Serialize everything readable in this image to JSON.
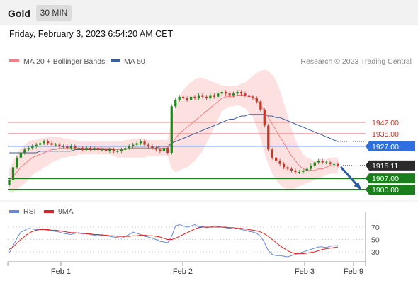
{
  "header": {
    "title": "Gold",
    "timeframe": "30 MIN"
  },
  "datetime": "Friday, February 3, 2023 6:54:20 AM CET",
  "legend": {
    "ma20": "MA 20 + Bollinger Bands",
    "ma50": "MA 50",
    "credit": "Research © 2023 Trading Central",
    "rsi": "RSI",
    "rsi_ma": "9MA"
  },
  "colors": {
    "ma20": "#f08080",
    "ma50": "#3a5fa0",
    "bollinger_fill": "#fde0e0",
    "resistance": "#f08080",
    "pivot": "#4a7cd0",
    "support": "#1a7f1a",
    "candle_up": "#1e8a1e",
    "candle_down": "#c0392b",
    "rsi": "#6688dd",
    "rsi_ma": "#dd2222",
    "arrow": "#2a5aa0"
  },
  "chart_data": [
    {
      "type": "candlestick",
      "instrument": "Gold",
      "timeframe": "30 MIN",
      "x_ticks": [
        "Feb 1",
        "Feb 2",
        "Feb 3",
        "Feb 9"
      ],
      "levels": [
        {
          "value": 1942.0,
          "label": "1942.00",
          "kind": "resistance"
        },
        {
          "value": 1935.0,
          "label": "1935.00",
          "kind": "resistance"
        },
        {
          "value": 1927.0,
          "label": "1927.00",
          "kind": "pivot"
        },
        {
          "value": 1915.11,
          "label": "1915.11",
          "kind": "last_price"
        },
        {
          "value": 1907.0,
          "label": "1907.00",
          "kind": "support"
        },
        {
          "value": 1900.0,
          "label": "1900.00",
          "kind": "support"
        }
      ],
      "close": [
        1906,
        1914,
        1920,
        1923,
        1925,
        1926,
        1927,
        1928,
        1929,
        1930,
        1929,
        1928,
        1928,
        1927,
        1927,
        1926,
        1927,
        1926,
        1926,
        1925,
        1926,
        1925,
        1926,
        1925,
        1925,
        1924,
        1925,
        1924,
        1924,
        1925,
        1926,
        1927,
        1928,
        1929,
        1930,
        1928,
        1927,
        1926,
        1925,
        1924,
        1926,
        1923,
        1952,
        1956,
        1958,
        1957,
        1956,
        1958,
        1957,
        1959,
        1958,
        1957,
        1959,
        1958,
        1960,
        1961,
        1960,
        1959,
        1960,
        1961,
        1960,
        1959,
        1958,
        1957,
        1955,
        1950,
        1940,
        1925,
        1920,
        1918,
        1916,
        1914,
        1913,
        1912,
        1911,
        1911,
        1912,
        1913,
        1915,
        1917,
        1918,
        1917,
        1917,
        1916,
        1916,
        1915.11
      ],
      "ma20": [
        1905,
        1908,
        1911,
        1914,
        1916,
        1918,
        1920,
        1921,
        1922,
        1923,
        1924,
        1925,
        1925,
        1926,
        1926,
        1926,
        1926,
        1926,
        1926,
        1926,
        1926,
        1926,
        1926,
        1926,
        1926,
        1926,
        1926,
        1925,
        1925,
        1925,
        1925,
        1926,
        1926,
        1926,
        1926,
        1926,
        1926,
        1926,
        1926,
        1926,
        1926,
        1926,
        1929,
        1932,
        1935,
        1937,
        1939,
        1941,
        1943,
        1945,
        1947,
        1949,
        1951,
        1953,
        1955,
        1957,
        1958,
        1958,
        1958,
        1959,
        1959,
        1959,
        1958,
        1958,
        1956,
        1953,
        1949,
        1945,
        1941,
        1937,
        1933,
        1929,
        1925,
        1921,
        1918,
        1915,
        1913,
        1912,
        1912,
        1912,
        1913,
        1913,
        1914,
        1915,
        1915,
        1915
      ],
      "bb_upper": [
        1913,
        1918,
        1922,
        1926,
        1928,
        1930,
        1931,
        1931,
        1932,
        1932,
        1933,
        1933,
        1933,
        1933,
        1932,
        1932,
        1931,
        1931,
        1930,
        1930,
        1930,
        1930,
        1930,
        1930,
        1930,
        1930,
        1930,
        1930,
        1930,
        1930,
        1931,
        1931,
        1932,
        1932,
        1932,
        1932,
        1931,
        1931,
        1931,
        1931,
        1931,
        1931,
        1945,
        1952,
        1958,
        1962,
        1965,
        1967,
        1969,
        1970,
        1970,
        1969,
        1968,
        1967,
        1966,
        1965,
        1965,
        1965,
        1965,
        1965,
        1966,
        1967,
        1969,
        1971,
        1973,
        1974,
        1975,
        1974,
        1972,
        1968,
        1962,
        1954,
        1946,
        1938,
        1931,
        1926,
        1922,
        1920,
        1919,
        1918,
        1919,
        1919,
        1919,
        1920,
        1920,
        1920
      ],
      "bb_lower": [
        1898,
        1898,
        1900,
        1902,
        1904,
        1906,
        1909,
        1911,
        1912,
        1914,
        1915,
        1917,
        1918,
        1919,
        1920,
        1920,
        1921,
        1921,
        1922,
        1922,
        1922,
        1922,
        1922,
        1922,
        1922,
        1922,
        1922,
        1921,
        1920,
        1920,
        1920,
        1920,
        1920,
        1920,
        1920,
        1920,
        1921,
        1921,
        1921,
        1921,
        1921,
        1921,
        1913,
        1911,
        1912,
        1913,
        1914,
        1916,
        1918,
        1921,
        1924,
        1929,
        1934,
        1939,
        1944,
        1949,
        1951,
        1952,
        1952,
        1953,
        1952,
        1951,
        1948,
        1945,
        1939,
        1932,
        1923,
        1916,
        1910,
        1906,
        1903,
        1901,
        1900,
        1900,
        1901,
        1902,
        1903,
        1904,
        1905,
        1906,
        1907,
        1908,
        1909,
        1910,
        1910,
        1910
      ],
      "ma50": [
        1923,
        1923,
        1923,
        1923,
        1923,
        1923,
        1923,
        1923,
        1924,
        1924,
        1924,
        1924,
        1924,
        1924,
        1924,
        1924,
        1924,
        1925,
        1925,
        1925,
        1925,
        1925,
        1925,
        1925,
        1925,
        1925,
        1925,
        1925,
        1925,
        1925,
        1925,
        1926,
        1926,
        1926,
        1926,
        1926,
        1926,
        1926,
        1926,
        1927,
        1927,
        1927,
        1929,
        1930,
        1931,
        1932,
        1933,
        1934,
        1935,
        1936,
        1937,
        1938,
        1939,
        1940,
        1941,
        1942,
        1943,
        1944,
        1944,
        1945,
        1946,
        1946,
        1947,
        1947,
        1947,
        1947,
        1947,
        1946,
        1946,
        1945,
        1945,
        1944,
        1943,
        1942,
        1941,
        1940,
        1939,
        1938,
        1937,
        1936,
        1935,
        1934,
        1933,
        1932,
        1931,
        1930
      ]
    },
    {
      "type": "line",
      "name": "RSI",
      "y_ticks": [
        "70",
        "50",
        "30"
      ],
      "ylim": [
        0,
        100
      ],
      "series": [
        {
          "name": "RSI",
          "values": [
            28,
            40,
            52,
            62,
            65,
            68,
            67,
            66,
            67,
            66,
            65,
            64,
            63,
            62,
            60,
            59,
            58,
            60,
            61,
            59,
            60,
            58,
            57,
            56,
            58,
            56,
            55,
            54,
            53,
            52,
            55,
            58,
            62,
            60,
            58,
            55,
            54,
            52,
            50,
            47,
            46,
            45,
            55,
            72,
            74,
            72,
            70,
            72,
            74,
            70,
            71,
            69,
            70,
            72,
            71,
            70,
            69,
            68,
            67,
            68,
            66,
            65,
            63,
            62,
            60,
            55,
            45,
            32,
            26,
            24,
            24,
            23,
            22,
            24,
            26,
            28,
            30,
            32,
            34,
            36,
            38,
            38,
            37,
            39,
            40,
            40
          ]
        },
        {
          "name": "9MA",
          "values": [
            34,
            38,
            44,
            50,
            55,
            60,
            63,
            65,
            66,
            66,
            66,
            65,
            65,
            64,
            63,
            62,
            61,
            61,
            60,
            60,
            59,
            59,
            58,
            58,
            57,
            57,
            56,
            56,
            55,
            55,
            55,
            55,
            56,
            56,
            57,
            57,
            56,
            56,
            55,
            54,
            52,
            50,
            50,
            52,
            55,
            58,
            61,
            64,
            67,
            69,
            70,
            70,
            70,
            70,
            70,
            70,
            70,
            69,
            69,
            68,
            68,
            67,
            66,
            65,
            64,
            62,
            59,
            55,
            50,
            45,
            40,
            36,
            32,
            29,
            27,
            27,
            27,
            28,
            29,
            30,
            32,
            34,
            35,
            36,
            37,
            38
          ]
        }
      ]
    }
  ]
}
